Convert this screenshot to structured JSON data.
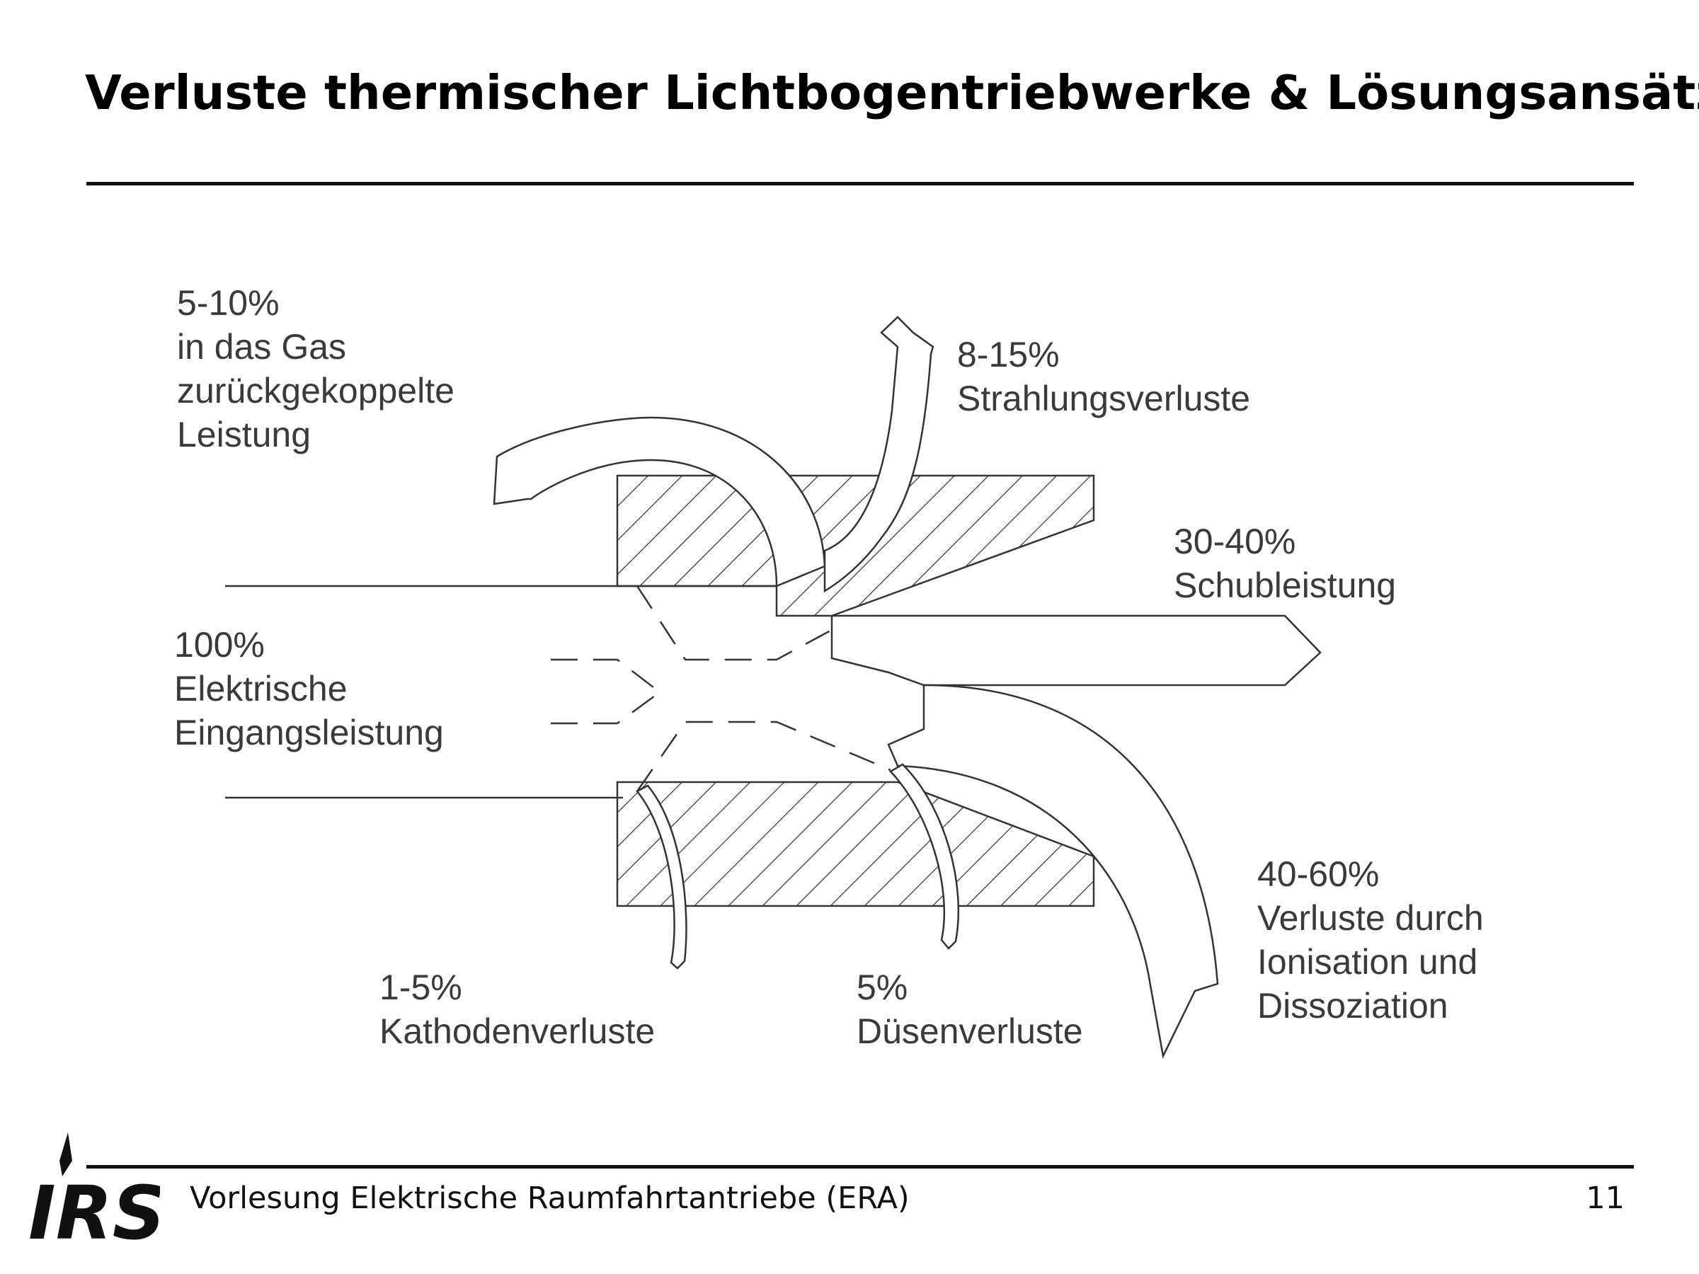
{
  "slide": {
    "title": "Verluste thermischer Lichtbogentriebwerke & Lösungsansätze",
    "footer_text": "Vorlesung Elektrische Raumfahrtantriebe (ERA)",
    "page_number": "11",
    "logo_text": "IRS"
  },
  "diagram": {
    "labels": {
      "input": [
        "100%",
        "Elektrische",
        "Eingangsleistung"
      ],
      "backcoupled": [
        "5-10%",
        "in das Gas",
        "zurückgekoppelte",
        "Leistung"
      ],
      "radiation": [
        "8-15%",
        "Strahlungsverluste"
      ],
      "thrust": [
        "30-40%",
        "Schubleistung"
      ],
      "ionisation": [
        "40-60%",
        "Verluste durch",
        "Ionisation und",
        "Dissoziation"
      ],
      "cathode": [
        "1-5%",
        "Kathodenverluste"
      ],
      "nozzle": [
        "5%",
        "Düsenverluste"
      ]
    }
  }
}
